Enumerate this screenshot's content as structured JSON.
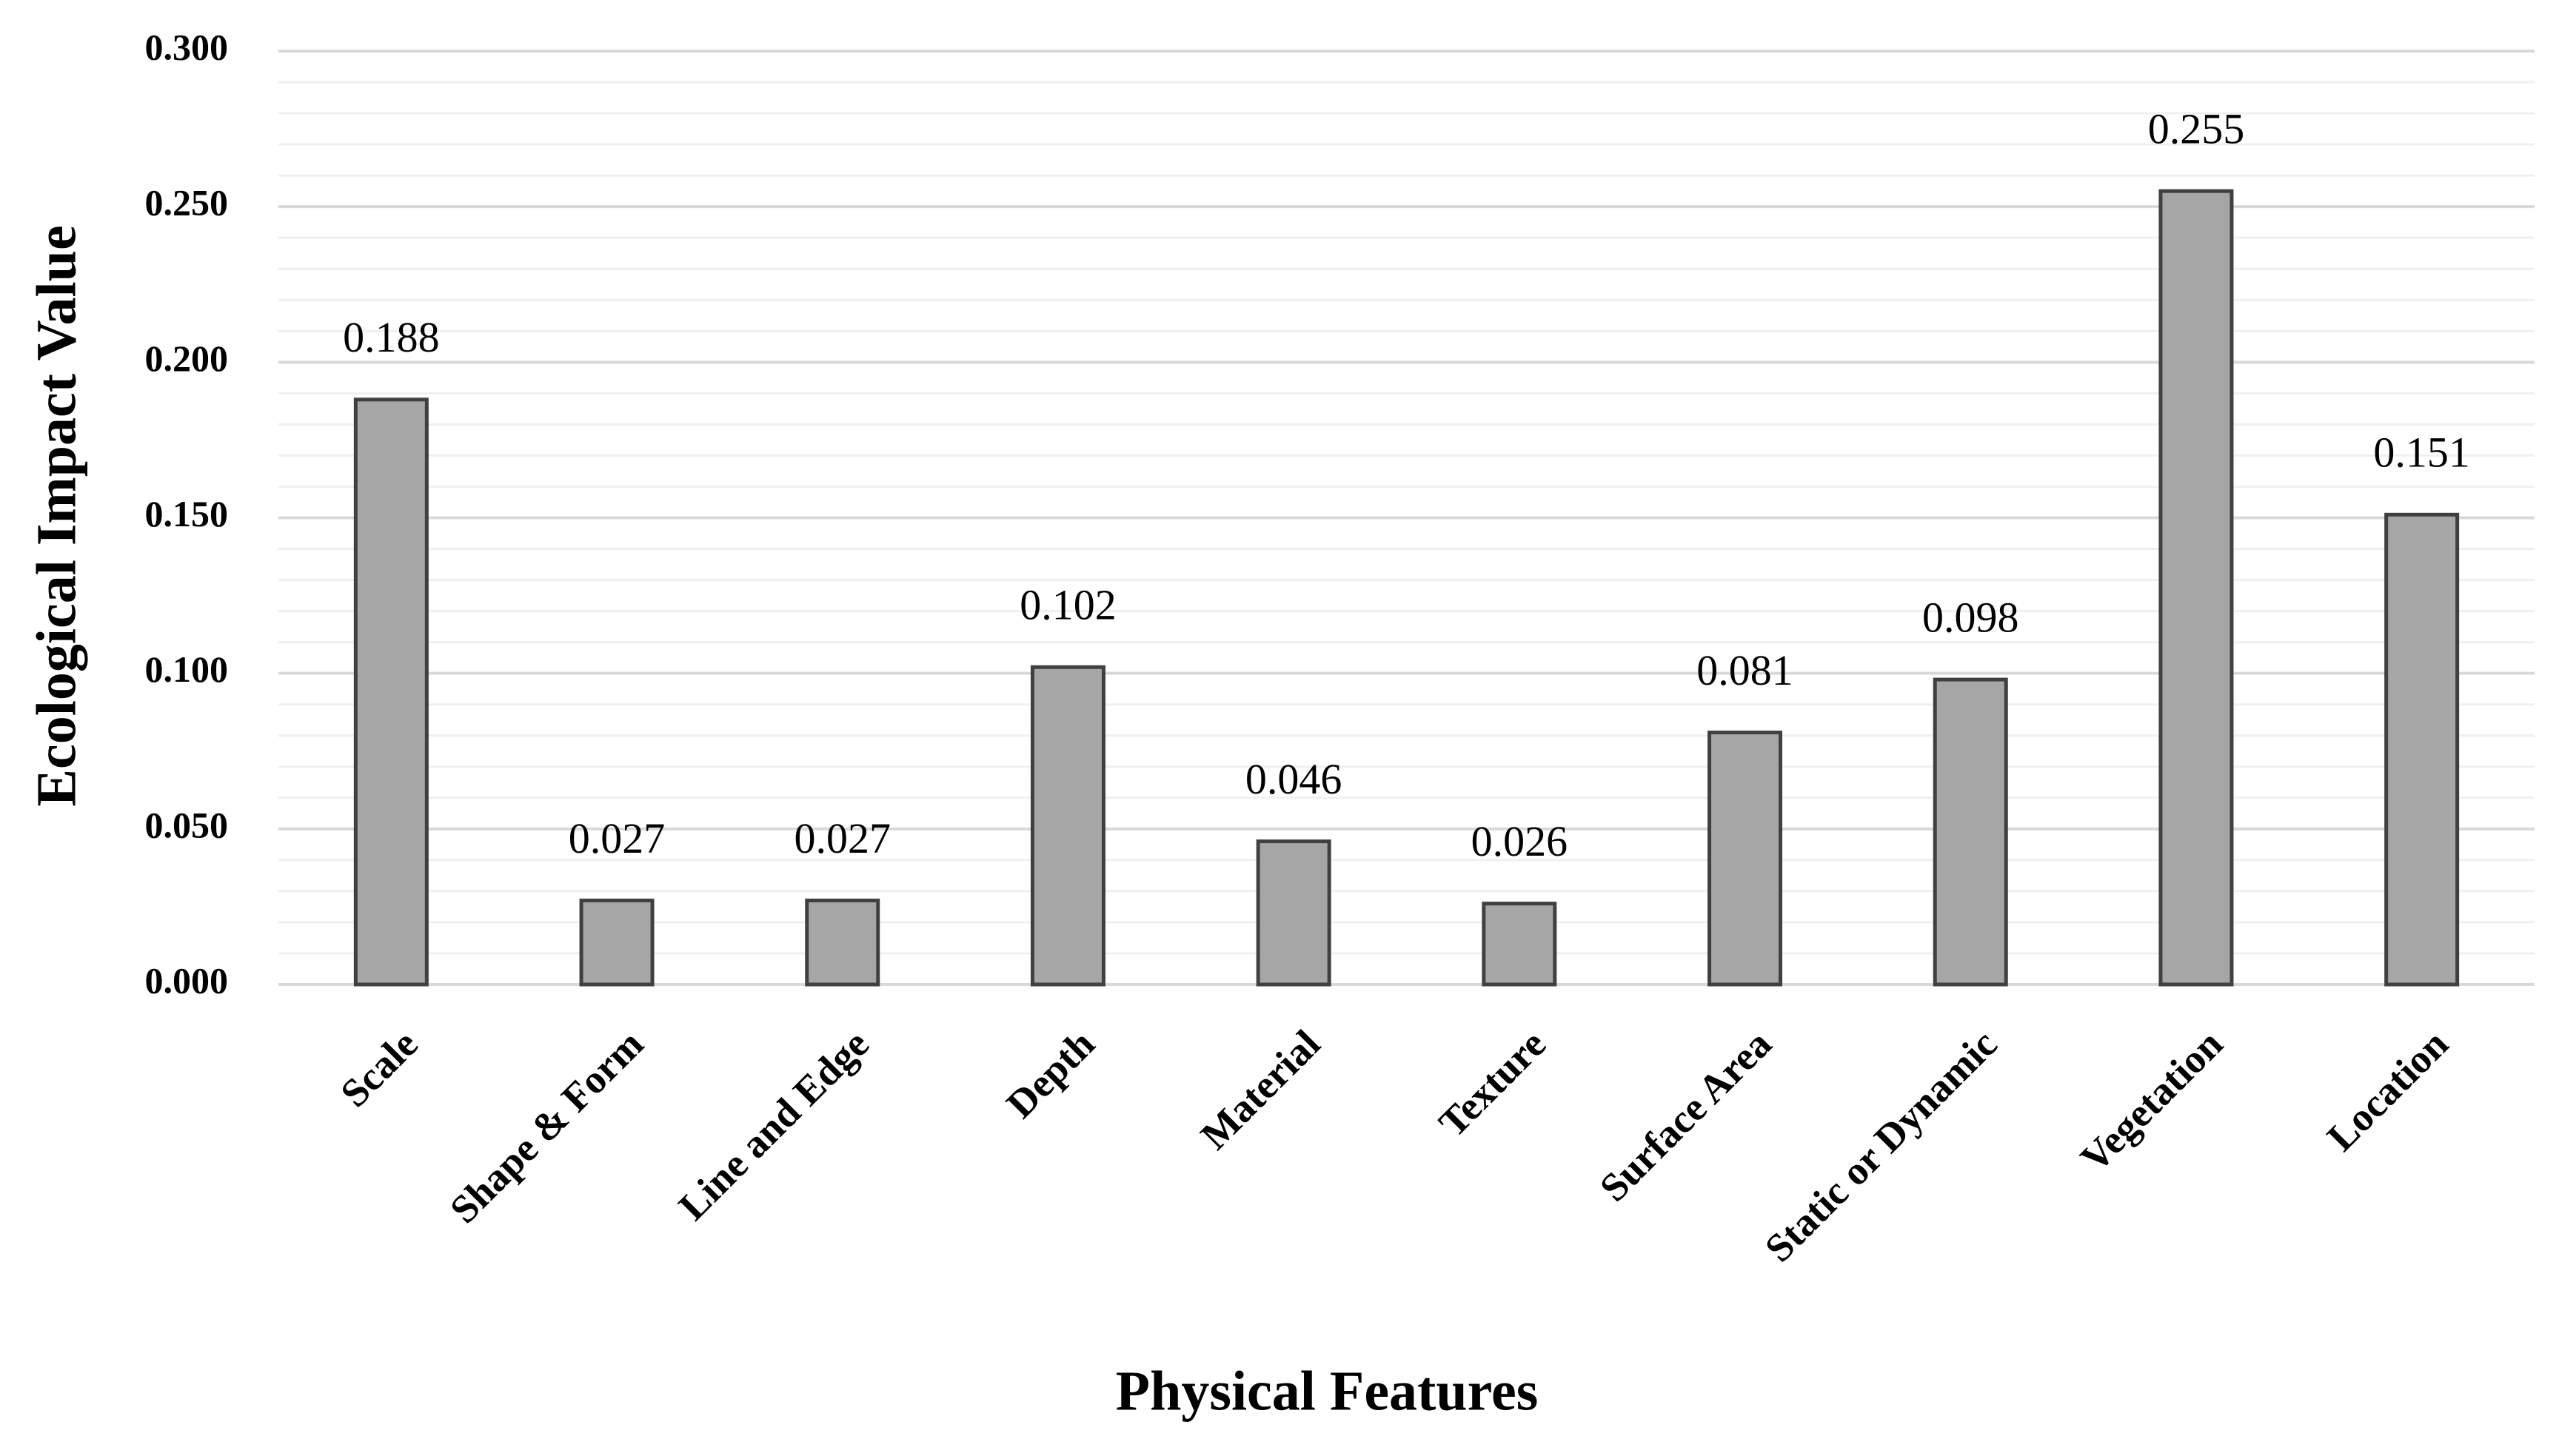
{
  "chart_data": {
    "type": "bar",
    "x_label": "Physical Features",
    "y_label": "Ecological Impact Value",
    "categories": [
      "Scale",
      "Shape & Form",
      "Line and Edge",
      "Depth",
      "Material",
      "Texture",
      "Surface Area",
      "Static or Dynamic",
      "Vegetation",
      "Location"
    ],
    "values": [
      0.188,
      0.027,
      0.027,
      0.102,
      0.046,
      0.026,
      0.081,
      0.098,
      0.255,
      0.151
    ],
    "color": "#a6a6a6",
    "edge_color": "#404040",
    "ylim": [
      0,
      0.3
    ],
    "yticks": [
      {
        "value": 0,
        "label": "0.000"
      },
      {
        "value": 0.05,
        "label": "0.050"
      },
      {
        "value": 0.1,
        "label": "0.100"
      },
      {
        "value": 0.15,
        "label": "0.150"
      },
      {
        "value": 0.2,
        "label": "0.200"
      },
      {
        "value": 0.25,
        "label": "0.250"
      },
      {
        "value": 0.3,
        "label": "0.300"
      }
    ],
    "yminorticks": [
      0.01,
      0.02,
      0.03,
      0.04,
      0.06,
      0.07,
      0.08,
      0.09,
      0.11,
      0.12,
      0.13,
      0.14,
      0.16,
      0.17,
      0.18,
      0.19,
      0.21,
      0.22,
      0.23,
      0.24,
      0.26,
      0.27,
      0.28,
      0.29
    ],
    "grid": true
  }
}
